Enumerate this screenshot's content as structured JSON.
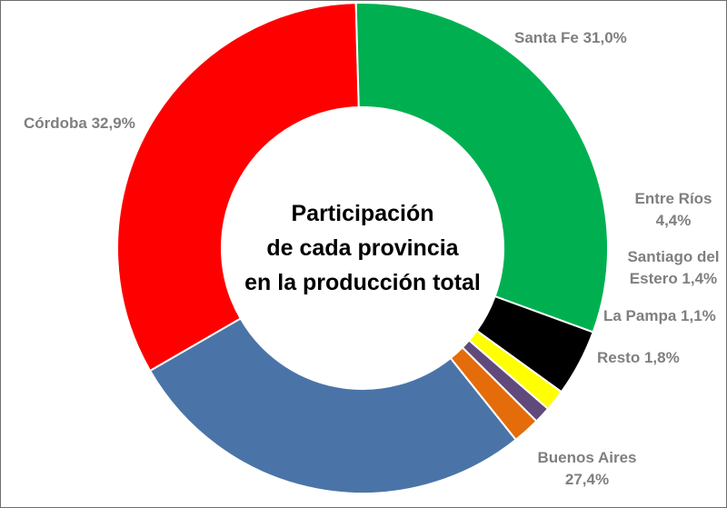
{
  "chart_data": {
    "type": "pie",
    "subtype": "donut",
    "title_lines": [
      "Participación",
      "de cada provincia",
      "en la producción total"
    ],
    "slices": [
      {
        "name": "Córdoba",
        "value": 32.9,
        "color": "#ff0000",
        "label_lines": [
          "Córdoba 32,9%"
        ]
      },
      {
        "name": "Santa Fe",
        "value": 31.0,
        "color": "#00b050",
        "label_lines": [
          "Santa Fe 31,0%"
        ]
      },
      {
        "name": "Entre Ríos",
        "value": 4.4,
        "color": "#000000",
        "label_lines": [
          "Entre Ríos",
          "4,4%"
        ]
      },
      {
        "name": "Santiago del Estero",
        "value": 1.4,
        "color": "#ffff00",
        "label_lines": [
          "Santiago del",
          "Estero 1,4%"
        ]
      },
      {
        "name": "La Pampa",
        "value": 1.1,
        "color": "#604a7b",
        "label_lines": [
          "La Pampa 1,1%"
        ]
      },
      {
        "name": "Resto",
        "value": 1.8,
        "color": "#e46c0a",
        "label_lines": [
          "Resto 1,8%"
        ]
      },
      {
        "name": "Buenos Aires",
        "value": 27.4,
        "color": "#4a74a8",
        "label_lines": [
          "Buenos Aires",
          "27,4%"
        ]
      }
    ],
    "legend": "none",
    "data_labels": "outside"
  }
}
